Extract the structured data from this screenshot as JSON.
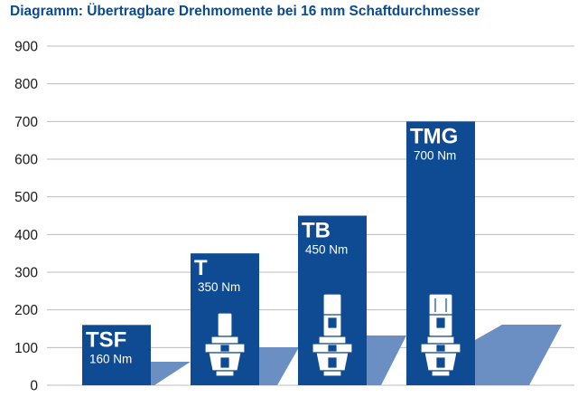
{
  "title": "Diagramm: Übertragbare Drehmomente bei 16 mm Schaftdurchmesser",
  "colors": {
    "bar": "#0e4b93",
    "shadow": "#6c8fc3",
    "grid": "#bcbcbc",
    "axis_text": "#1a1a1a",
    "title": "#0a4b8f",
    "icon_body": "#ffffff"
  },
  "chart_data": {
    "type": "bar",
    "title": "Diagramm: Übertragbare Drehmomente bei 16 mm Schaftdurchmesser",
    "xlabel": "",
    "ylabel": "",
    "ylim": [
      0,
      900
    ],
    "yticks": [
      "0",
      "100",
      "200",
      "300",
      "400",
      "500",
      "600",
      "700",
      "800",
      "900"
    ],
    "grid": true,
    "categories": [
      "TSF",
      "T",
      "TB",
      "TMG"
    ],
    "values": [
      160,
      350,
      450,
      700
    ],
    "value_labels": [
      "160 Nm",
      "350 Nm",
      "450 Nm",
      "700 Nm"
    ]
  }
}
